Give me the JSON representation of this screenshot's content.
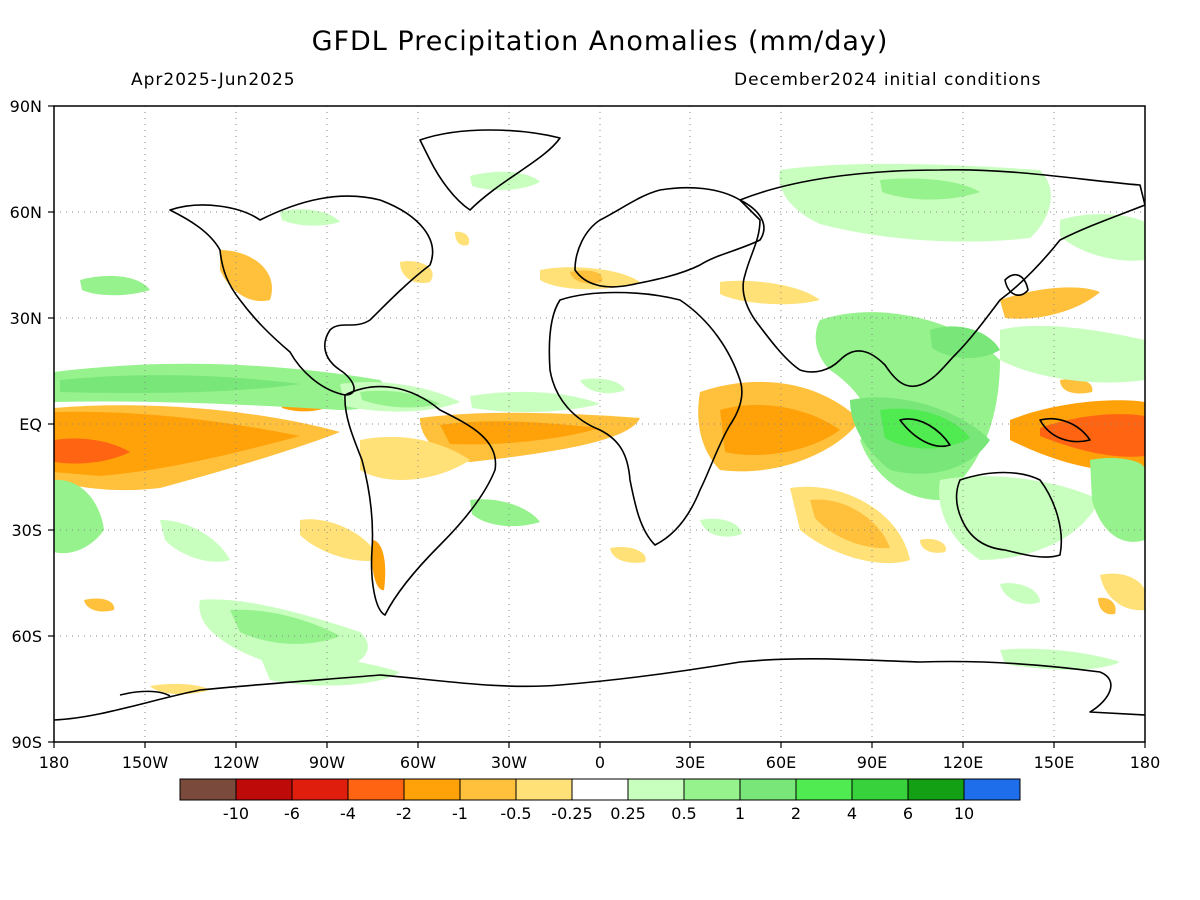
{
  "title": "GFDL Precipitation Anomalies (mm/day)",
  "subtitle_left": "Apr2025-Jun2025",
  "subtitle_right": "December2024 initial conditions",
  "lat_labels": [
    "90N",
    "60N",
    "30N",
    "EQ",
    "30S",
    "60S",
    "90S"
  ],
  "lon_labels": [
    "180",
    "150W",
    "120W",
    "90W",
    "60W",
    "30W",
    "0",
    "30E",
    "60E",
    "90E",
    "120E",
    "150E",
    "180"
  ],
  "colorbar": {
    "colors": [
      "#7a4b3c",
      "#bf0a0a",
      "#e01e0e",
      "#ff6412",
      "#ffa20a",
      "#ffc03c",
      "#ffe178",
      "#ffffff",
      "#c8ffbe",
      "#96f28c",
      "#78e678",
      "#50eb50",
      "#37d23c",
      "#14a014",
      "#1e6eeb"
    ],
    "labels": [
      "-10",
      "-6",
      "-4",
      "-2",
      "-1",
      "-0.5",
      "-0.25",
      "0.25",
      "0.5",
      "1",
      "2",
      "4",
      "6",
      "10"
    ]
  },
  "colors": {
    "dry_light": "#ffe178",
    "dry_mid": "#ffc03c",
    "dry_strong": "#ffa20a",
    "dry_vstrong": "#ff6412",
    "wet_light": "#c8ffbe",
    "wet_mid": "#96f28c",
    "wet_strong": "#78e678",
    "wet_vstrong": "#50eb50"
  }
}
